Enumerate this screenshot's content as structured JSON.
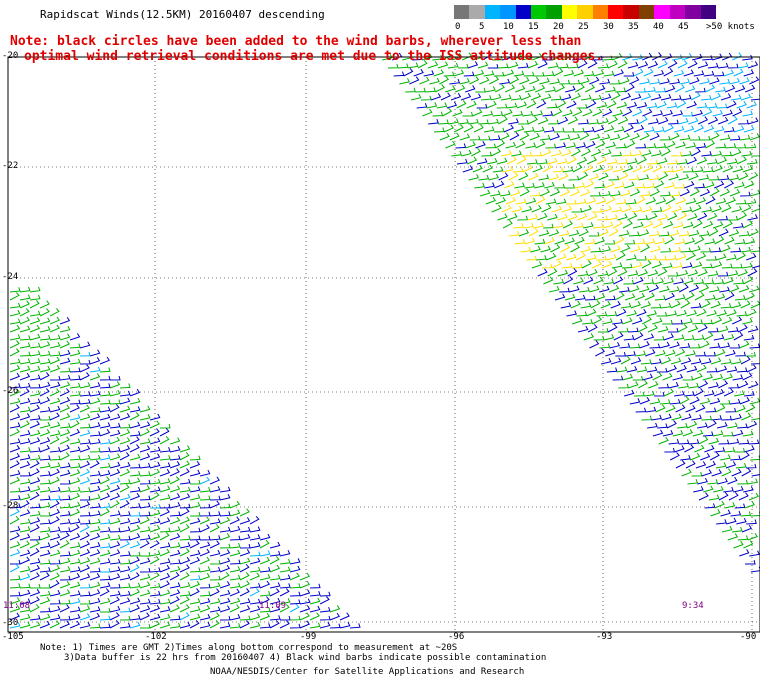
{
  "title": "Rapidscat Winds(12.5KM) 20160407 descending",
  "note_line1": "Note: black circles have been added to the wind barbs, wherever less than",
  "note_line2": "optimal wind retrieval conditions are met due to the ISS attitude changes.",
  "legend": {
    "colors": [
      "#777777",
      "#aaaaaa",
      "#00b4ff",
      "#0096ff",
      "#0000c8",
      "#00c800",
      "#00a000",
      "#ffff00",
      "#ffd000",
      "#ff8000",
      "#ff0000",
      "#c80000",
      "#804000",
      "#ff00ff",
      "#c000c0",
      "#8000a0",
      "#400080"
    ],
    "labels": [
      "0",
      "5",
      "10",
      "15",
      "20",
      "25",
      "30",
      "35",
      "40",
      "45",
      ">50 knots"
    ]
  },
  "lat_labels": [
    "-20",
    "-22",
    "-24",
    "-26",
    "-28",
    "-30"
  ],
  "lon_labels": [
    "-105",
    "-102",
    "-99",
    "-96",
    "-93",
    "-90"
  ],
  "times": [
    "11:08",
    "11:09",
    "9:34"
  ],
  "footer": {
    "line1": "Note: 1) Times are GMT 2)Times along bottom correspond to measurement at ~20S",
    "line2": "3)Data buffer is 22 hrs from 20160407 4) Black wind barbs indicate possible contamination",
    "line3": "NOAA/NESDIS/Center for Satellite Applications and Research"
  },
  "colors": {
    "note": "#e00000",
    "time": "#800080",
    "barb_blue": "#0000c8",
    "barb_green": "#00b400",
    "barb_yellow": "#ffe000",
    "barb_cyan": "#00b4ff"
  }
}
